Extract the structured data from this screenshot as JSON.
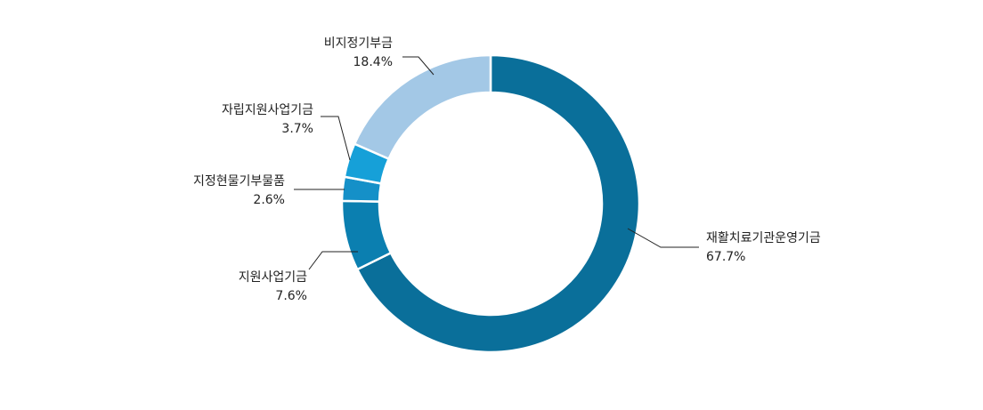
{
  "chart_data": {
    "type": "donut",
    "categories": [
      "재활치료기관운영기금",
      "지원사업기금",
      "지정현물기부물품",
      "자립지원사업기금",
      "비지정기부금"
    ],
    "values": [
      67.7,
      7.6,
      2.6,
      3.7,
      18.4
    ],
    "value_labels": [
      "67.7%",
      "7.6%",
      "2.6%",
      "3.7%",
      "18.4%"
    ],
    "colors": [
      "#0a6f9a",
      "#0b7fb0",
      "#1590c8",
      "#16a0d8",
      "#a3c8e6"
    ]
  }
}
